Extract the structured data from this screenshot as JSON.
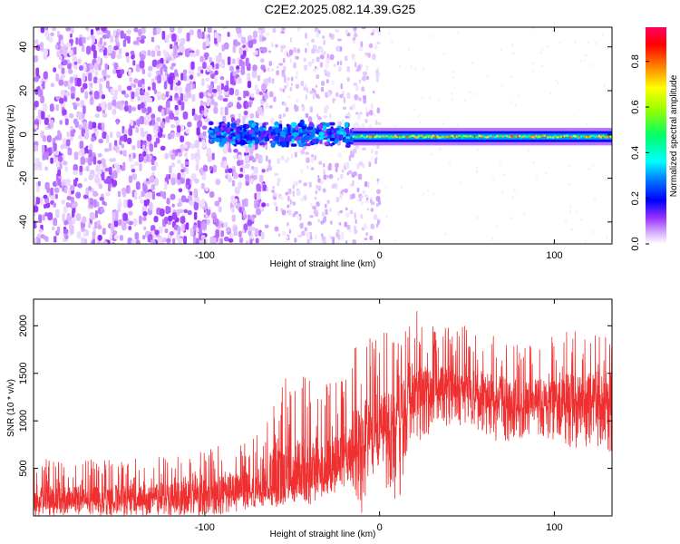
{
  "figure_title": "C2E2.2025.082.14.39.G25",
  "chart_data": [
    {
      "type": "heatmap",
      "title": "C2E2.2025.082.14.39.G25",
      "xlabel": "Height of straight line (km)",
      "ylabel": "Frequency (Hz)",
      "xlim": [
        -198,
        133
      ],
      "ylim": [
        -50,
        49
      ],
      "x_ticks": [
        -100,
        0,
        100
      ],
      "y_ticks": [
        -40,
        -20,
        0,
        20,
        40
      ],
      "colorbar": {
        "label": "Normalized spectral amplitude",
        "range": [
          0,
          0.95
        ],
        "ticks": [
          0.0,
          0.2,
          0.4,
          0.6,
          0.8
        ],
        "colormap": [
          "#ffffff",
          "#d9b3ff",
          "#8000ff",
          "#0000ff",
          "#00ffff",
          "#00ff00",
          "#ffff00",
          "#ff8000",
          "#ff0000",
          "#ff0080"
        ]
      },
      "features": [
        {
          "description_x_range": [
            -198,
            -65
          ],
          "frequency_range": [
            -50,
            49
          ],
          "amplitude_range": [
            0.0,
            0.1
          ]
        },
        {
          "description_x_range": [
            -65,
            0
          ],
          "frequency_range": [
            -50,
            49
          ],
          "amplitude_range": [
            0.0,
            0.05
          ]
        },
        {
          "description_x_range": [
            -97,
            -15
          ],
          "frequency_center": 0,
          "frequency_halfwidth": 6,
          "amplitude_range": [
            0.1,
            0.35
          ]
        },
        {
          "description_x_range": [
            -15,
            133
          ],
          "frequency_center": -1,
          "frequency_halfwidth": 2.5,
          "amplitude_range": [
            0.2,
            0.9
          ]
        }
      ]
    },
    {
      "type": "line",
      "xlabel": "Height of straight line (km)",
      "ylabel": "SNR (10 * v/v)",
      "xlim": [
        -198,
        133
      ],
      "ylim": [
        0,
        2280
      ],
      "x_ticks": [
        -100,
        0,
        100
      ],
      "y_ticks": [
        500,
        1000,
        1500,
        2000
      ],
      "line_color": "#f03030",
      "envelope": {
        "x": [
          -198,
          -160,
          -140,
          -120,
          -100,
          -80,
          -65,
          -58,
          -50,
          -40,
          -30,
          -20,
          -15,
          -10,
          -5,
          0,
          5,
          10,
          15,
          20,
          30,
          40,
          50,
          60,
          70,
          80,
          90,
          100,
          110,
          120,
          133
        ],
        "baseline": [
          150,
          150,
          170,
          180,
          200,
          250,
          280,
          300,
          380,
          400,
          480,
          600,
          650,
          800,
          850,
          900,
          950,
          1000,
          1100,
          1200,
          1300,
          1350,
          1300,
          1250,
          1200,
          1150,
          1200,
          1200,
          1200,
          1250,
          1250
        ],
        "peak": [
          600,
          600,
          620,
          640,
          700,
          800,
          900,
          1680,
          1350,
          1550,
          1400,
          1450,
          1900,
          1750,
          2050,
          1900,
          2000,
          1800,
          2100,
          2180,
          2000,
          2000,
          2000,
          1950,
          1850,
          1850,
          1800,
          1900,
          2000,
          1950,
          1950
        ],
        "trough": [
          0,
          0,
          0,
          0,
          0,
          50,
          100,
          100,
          150,
          100,
          200,
          300,
          300,
          0,
          400,
          500,
          200,
          0,
          600,
          700,
          900,
          950,
          950,
          850,
          750,
          800,
          850,
          800,
          700,
          650,
          650
        ]
      }
    }
  ]
}
